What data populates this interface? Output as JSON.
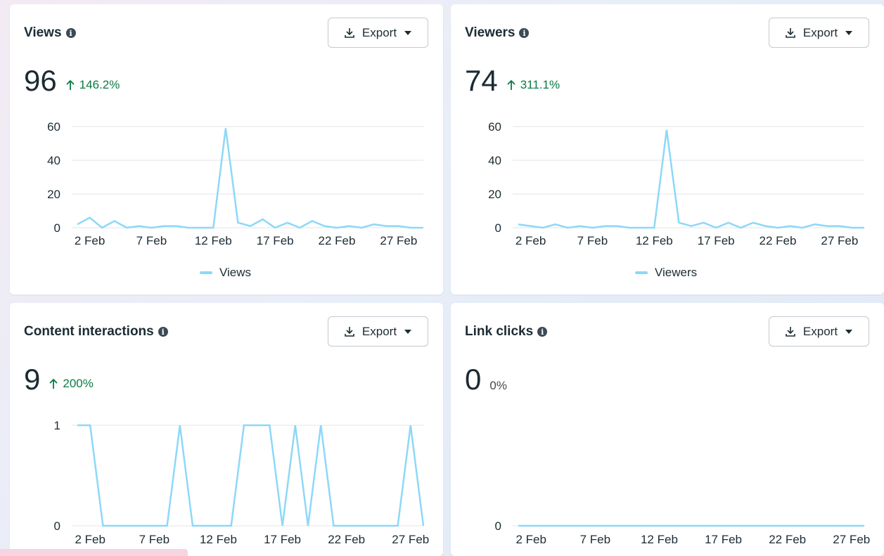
{
  "cards": [
    {
      "title": "Views",
      "export_label": "Export",
      "value": "96",
      "delta": "146.2%",
      "delta_direction": "up",
      "legend": "Views"
    },
    {
      "title": "Viewers",
      "export_label": "Export",
      "value": "74",
      "delta": "311.1%",
      "delta_direction": "up",
      "legend": "Viewers"
    },
    {
      "title": "Content interactions",
      "export_label": "Export",
      "value": "9",
      "delta": "200%",
      "delta_direction": "up"
    },
    {
      "title": "Link clicks",
      "export_label": "Export",
      "value": "0",
      "delta": "0%",
      "delta_direction": "none"
    }
  ],
  "colors": {
    "line": "#8dd8f8",
    "positive": "#0a7a46",
    "grid": "#e4e6eb"
  },
  "icons": {
    "info": "info-icon",
    "download": "download-icon",
    "dropdown": "caret-down-icon",
    "trend_up": "arrow-up-icon"
  },
  "chart_data": [
    {
      "type": "line",
      "title": "Views",
      "x_tick_labels": [
        "2 Feb",
        "7 Feb",
        "12 Feb",
        "17 Feb",
        "22 Feb",
        "27 Feb"
      ],
      "x": [
        "1 Feb",
        "2 Feb",
        "3 Feb",
        "4 Feb",
        "5 Feb",
        "6 Feb",
        "7 Feb",
        "8 Feb",
        "9 Feb",
        "10 Feb",
        "11 Feb",
        "12 Feb",
        "13 Feb",
        "14 Feb",
        "15 Feb",
        "16 Feb",
        "17 Feb",
        "18 Feb",
        "19 Feb",
        "20 Feb",
        "21 Feb",
        "22 Feb",
        "23 Feb",
        "24 Feb",
        "25 Feb",
        "26 Feb",
        "27 Feb",
        "28 Feb",
        "29 Feb"
      ],
      "ylim": [
        0,
        60
      ],
      "y_ticks": [
        0,
        20,
        40,
        60
      ],
      "grid": true,
      "legend_position": "bottom",
      "series": [
        {
          "name": "Views",
          "values": [
            2,
            6,
            0,
            4,
            0,
            1,
            0,
            1,
            1,
            0,
            0,
            0,
            59,
            3,
            1,
            5,
            0,
            3,
            0,
            4,
            1,
            0,
            1,
            0,
            2,
            1,
            1,
            0,
            0
          ]
        }
      ]
    },
    {
      "type": "line",
      "title": "Viewers",
      "x_tick_labels": [
        "2 Feb",
        "7 Feb",
        "12 Feb",
        "17 Feb",
        "22 Feb",
        "27 Feb"
      ],
      "x": [
        "1 Feb",
        "2 Feb",
        "3 Feb",
        "4 Feb",
        "5 Feb",
        "6 Feb",
        "7 Feb",
        "8 Feb",
        "9 Feb",
        "10 Feb",
        "11 Feb",
        "12 Feb",
        "13 Feb",
        "14 Feb",
        "15 Feb",
        "16 Feb",
        "17 Feb",
        "18 Feb",
        "19 Feb",
        "20 Feb",
        "21 Feb",
        "22 Feb",
        "23 Feb",
        "24 Feb",
        "25 Feb",
        "26 Feb",
        "27 Feb",
        "28 Feb",
        "29 Feb"
      ],
      "ylim": [
        0,
        60
      ],
      "y_ticks": [
        0,
        20,
        40,
        60
      ],
      "grid": true,
      "legend_position": "bottom",
      "series": [
        {
          "name": "Viewers",
          "values": [
            2,
            1,
            0,
            2,
            0,
            1,
            0,
            1,
            1,
            0,
            0,
            0,
            58,
            3,
            1,
            3,
            0,
            3,
            0,
            3,
            1,
            0,
            1,
            0,
            2,
            1,
            1,
            0,
            0
          ]
        }
      ]
    },
    {
      "type": "line",
      "title": "Content interactions",
      "x_tick_labels": [
        "2 Feb",
        "7 Feb",
        "12 Feb",
        "17 Feb",
        "22 Feb",
        "27 Feb"
      ],
      "x": [
        "1 Feb",
        "2 Feb",
        "3 Feb",
        "4 Feb",
        "5 Feb",
        "6 Feb",
        "7 Feb",
        "8 Feb",
        "9 Feb",
        "10 Feb",
        "11 Feb",
        "12 Feb",
        "13 Feb",
        "14 Feb",
        "15 Feb",
        "16 Feb",
        "17 Feb",
        "18 Feb",
        "19 Feb",
        "20 Feb",
        "21 Feb",
        "22 Feb",
        "23 Feb",
        "24 Feb",
        "25 Feb",
        "26 Feb",
        "27 Feb",
        "28 Feb"
      ],
      "ylim": [
        0,
        1
      ],
      "y_ticks": [
        0,
        1
      ],
      "grid": true,
      "series": [
        {
          "values": [
            1,
            1,
            0,
            0,
            0,
            0,
            0,
            0,
            1,
            0,
            0,
            0,
            0,
            1,
            1,
            1,
            0,
            1,
            0,
            1,
            0,
            0,
            0,
            0,
            0,
            0,
            1,
            0
          ]
        }
      ]
    },
    {
      "type": "line",
      "title": "Link clicks",
      "x_tick_labels": [
        "2 Feb",
        "7 Feb",
        "12 Feb",
        "17 Feb",
        "22 Feb",
        "27 Feb"
      ],
      "x": [
        "1 Feb",
        "2 Feb",
        "3 Feb",
        "4 Feb",
        "5 Feb",
        "6 Feb",
        "7 Feb",
        "8 Feb",
        "9 Feb",
        "10 Feb",
        "11 Feb",
        "12 Feb",
        "13 Feb",
        "14 Feb",
        "15 Feb",
        "16 Feb",
        "17 Feb",
        "18 Feb",
        "19 Feb",
        "20 Feb",
        "21 Feb",
        "22 Feb",
        "23 Feb",
        "24 Feb",
        "25 Feb",
        "26 Feb",
        "27 Feb",
        "28 Feb"
      ],
      "ylim": [
        0,
        1
      ],
      "y_ticks": [
        0
      ],
      "grid": true,
      "series": [
        {
          "values": [
            0,
            0,
            0,
            0,
            0,
            0,
            0,
            0,
            0,
            0,
            0,
            0,
            0,
            0,
            0,
            0,
            0,
            0,
            0,
            0,
            0,
            0,
            0,
            0,
            0,
            0,
            0,
            0
          ]
        }
      ]
    }
  ]
}
